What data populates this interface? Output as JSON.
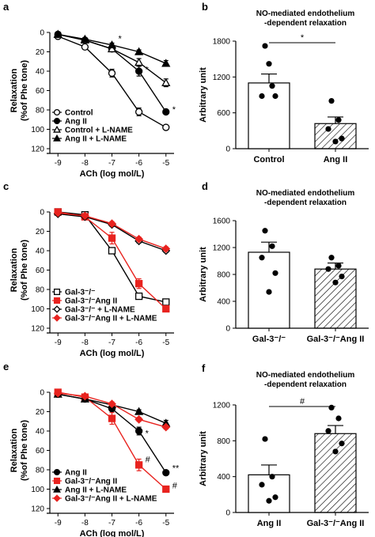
{
  "colors": {
    "black": "#000000",
    "red": "#e8231f",
    "white": "#ffffff"
  },
  "chart_data": [
    {
      "panel": "a",
      "type": "line",
      "xlabel": "ACh (log mol/L)",
      "ylabel": "Relaxation (%of Phe tone)",
      "x": [
        -9,
        -8,
        -7,
        -6,
        -5
      ],
      "xticks": [
        "-9",
        "-8",
        "-7",
        "-6",
        "-5"
      ],
      "yticks": [
        "0",
        "20",
        "40",
        "60",
        "80",
        "100",
        "120"
      ],
      "xlim": [
        -9.3,
        -4.7
      ],
      "ylim": [
        0,
        120
      ],
      "y_inverted": true,
      "legend_position": "bottom-left",
      "series": [
        {
          "name": "Control",
          "marker": "circle-open",
          "color": "#000000",
          "values": [
            4,
            15,
            42,
            82,
            98
          ],
          "err": [
            0,
            2,
            4,
            4,
            1
          ]
        },
        {
          "name": "Ang II",
          "marker": "circle-filled",
          "color": "#000000",
          "values": [
            2,
            8,
            17,
            40,
            82
          ],
          "err": [
            0,
            1,
            2,
            5,
            2
          ]
        },
        {
          "name": "Control + L-NAME",
          "marker": "triangle-open",
          "color": "#000000",
          "values": [
            2,
            8,
            17,
            31,
            52
          ],
          "err": [
            0,
            1,
            2,
            4,
            4
          ]
        },
        {
          "name": "Ang II + L-NAME",
          "marker": "triangle-filled",
          "color": "#000000",
          "values": [
            2,
            7,
            13,
            20,
            32
          ],
          "err": [
            0,
            1,
            2,
            2,
            3
          ]
        }
      ],
      "annotations": [
        {
          "text": "*",
          "x": -7,
          "y": 6
        },
        {
          "text": "*",
          "x": -6,
          "y": 38
        },
        {
          "text": "*",
          "x": -5,
          "y": 79
        }
      ]
    },
    {
      "panel": "b",
      "type": "bar",
      "title": "NO-mediated endothelium\n-dependent relaxation",
      "ylabel": "Arbitrary unit",
      "categories": [
        "Control",
        "Ang II"
      ],
      "values": [
        1100,
        420
      ],
      "err": [
        150,
        110
      ],
      "bar_fill": [
        "white",
        "hatched"
      ],
      "yticks": [
        "0",
        "600",
        "1200",
        "1800"
      ],
      "ylim": [
        0,
        1800
      ],
      "points": [
        [
          1720,
          1050,
          880,
          880,
          1420
        ],
        [
          800,
          480,
          330,
          170,
          120
        ]
      ],
      "significance": "*"
    },
    {
      "panel": "c",
      "type": "line",
      "xlabel": "ACh (log mol/L)",
      "ylabel": "Relaxation (%of Phe tone)",
      "x": [
        -9,
        -8,
        -7,
        -6,
        -5
      ],
      "xticks": [
        "-9",
        "-8",
        "-7",
        "-6",
        "-5"
      ],
      "yticks": [
        "0",
        "20",
        "40",
        "60",
        "80",
        "100",
        "120"
      ],
      "xlim": [
        -9.3,
        -4.7
      ],
      "ylim": [
        0,
        120
      ],
      "y_inverted": true,
      "legend_position": "bottom-left",
      "series": [
        {
          "name": "Gal-3⁻/⁻",
          "marker": "square-open",
          "color": "#000000",
          "values": [
            0,
            3,
            40,
            87,
            93
          ],
          "err": [
            0,
            1,
            3,
            2,
            1
          ]
        },
        {
          "name": "Gal-3⁻/⁻Ang II",
          "marker": "square-filled",
          "color": "#e8231f",
          "values": [
            0,
            5,
            27,
            74,
            100
          ],
          "err": [
            0,
            1,
            6,
            5,
            2
          ]
        },
        {
          "name": "Gal-3⁻/⁻ + L-NAME",
          "marker": "diamond-open",
          "color": "#000000",
          "values": [
            2,
            5,
            13,
            30,
            40
          ],
          "err": [
            0,
            1,
            2,
            2,
            2
          ]
        },
        {
          "name": "Gal-3⁻/⁻Ang II + L-NAME",
          "marker": "diamond-filled",
          "color": "#e8231f",
          "values": [
            1,
            4,
            12,
            28,
            38
          ],
          "err": [
            0,
            1,
            2,
            2,
            2
          ]
        }
      ]
    },
    {
      "panel": "d",
      "type": "bar",
      "title": "NO-mediated endothelium\n-dependent relaxation",
      "ylabel": "Arbitrary unit",
      "categories": [
        "Gal-3⁻/⁻",
        "Gal-3⁻/⁻Ang II"
      ],
      "values": [
        1130,
        880
      ],
      "err": [
        150,
        90
      ],
      "bar_fill": [
        "white",
        "hatched"
      ],
      "yticks": [
        "0",
        "400",
        "800",
        "1200",
        "1600"
      ],
      "ylim": [
        0,
        1600
      ],
      "points": [
        [
          1450,
          1220,
          1050,
          820,
          540
        ],
        [
          1050,
          930,
          880,
          770,
          680
        ]
      ]
    },
    {
      "panel": "e",
      "type": "line",
      "xlabel": "ACh (log mol/L)",
      "ylabel": "Relaxation (%of Phe tone)",
      "x": [
        -9,
        -8,
        -7,
        -6,
        -5
      ],
      "xticks": [
        "-9",
        "-8",
        "-7",
        "-6",
        "-5"
      ],
      "yticks": [
        "0",
        "20",
        "40",
        "60",
        "80",
        "100",
        "120"
      ],
      "xlim": [
        -9.3,
        -4.7
      ],
      "ylim": [
        0,
        120
      ],
      "y_inverted": true,
      "legend_position": "bottom-left",
      "series": [
        {
          "name": "Ang II",
          "marker": "circle-filled",
          "color": "#000000",
          "values": [
            2,
            7,
            17,
            40,
            83
          ],
          "err": [
            0,
            1,
            2,
            4,
            2
          ]
        },
        {
          "name": "Gal-3⁻/⁻Ang II",
          "marker": "square-filled",
          "color": "#e8231f",
          "values": [
            0,
            5,
            27,
            75,
            100
          ],
          "err": [
            0,
            1,
            6,
            6,
            2
          ]
        },
        {
          "name": "Ang II + L-NAME",
          "marker": "triangle-filled",
          "color": "#000000",
          "values": [
            2,
            7,
            13,
            20,
            32
          ],
          "err": [
            0,
            1,
            2,
            2,
            3
          ]
        },
        {
          "name": "Gal-3⁻/⁻Ang II + L-NAME",
          "marker": "diamond-filled",
          "color": "#e8231f",
          "values": [
            1,
            4,
            12,
            28,
            36
          ],
          "err": [
            0,
            1,
            2,
            2,
            2
          ]
        }
      ],
      "annotations": [
        {
          "text": "*",
          "x": -6,
          "y": 42
        },
        {
          "text": "**",
          "x": -5,
          "y": 78
        },
        {
          "text": "#",
          "x": -6,
          "y": 69
        },
        {
          "text": "#",
          "x": -5,
          "y": 96
        }
      ]
    },
    {
      "panel": "f",
      "type": "bar",
      "title": "NO-mediated endothelium\n-dependent relaxation",
      "ylabel": "Arbitrary unit",
      "categories": [
        "Ang II",
        "Gal-3⁻/⁻Ang II"
      ],
      "values": [
        420,
        880
      ],
      "err": [
        110,
        90
      ],
      "bar_fill": [
        "white",
        "hatched"
      ],
      "yticks": [
        "0",
        "400",
        "800",
        "1200"
      ],
      "ylim": [
        0,
        1200
      ],
      "points": [
        [
          820,
          400,
          310,
          170,
          130
        ],
        [
          1170,
          1050,
          910,
          770,
          680
        ]
      ],
      "significance": "#"
    }
  ]
}
